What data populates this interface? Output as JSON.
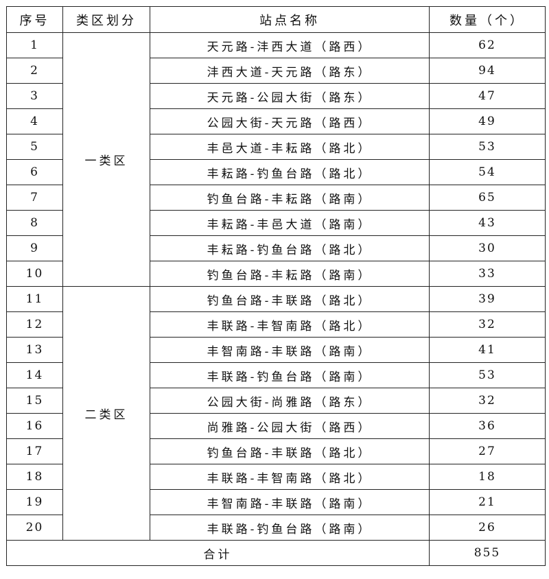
{
  "headers": [
    "序号",
    "类区划分",
    "站点名称",
    "数量（个）"
  ],
  "groups": [
    "一类区",
    "二类区"
  ],
  "rows": [
    {
      "no": "1",
      "name": "天元路-沣西大道（路西）",
      "count": "62"
    },
    {
      "no": "2",
      "name": "沣西大道-天元路（路东）",
      "count": "94"
    },
    {
      "no": "3",
      "name": "天元路-公园大街（路东）",
      "count": "47"
    },
    {
      "no": "4",
      "name": "公园大街-天元路（路西）",
      "count": "49"
    },
    {
      "no": "5",
      "name": "丰邑大道-丰耘路（路北）",
      "count": "53"
    },
    {
      "no": "6",
      "name": "丰耘路-钓鱼台路（路北）",
      "count": "54"
    },
    {
      "no": "7",
      "name": "钓鱼台路-丰耘路（路南）",
      "count": "65"
    },
    {
      "no": "8",
      "name": "丰耘路-丰邑大道（路南）",
      "count": "43"
    },
    {
      "no": "9",
      "name": "丰耘路-钓鱼台路（路北）",
      "count": "30"
    },
    {
      "no": "10",
      "name": "钓鱼台路-丰耘路（路南）",
      "count": "33"
    },
    {
      "no": "11",
      "name": "钓鱼台路-丰联路（路北）",
      "count": "39"
    },
    {
      "no": "12",
      "name": "丰联路-丰智南路（路北）",
      "count": "32"
    },
    {
      "no": "13",
      "name": "丰智南路-丰联路（路南）",
      "count": "41"
    },
    {
      "no": "14",
      "name": "丰联路-钓鱼台路（路南）",
      "count": "53"
    },
    {
      "no": "15",
      "name": "公园大街-尚雅路（路东）",
      "count": "32"
    },
    {
      "no": "16",
      "name": "尚雅路-公园大街（路西）",
      "count": "36"
    },
    {
      "no": "17",
      "name": "钓鱼台路-丰联路（路北）",
      "count": "27"
    },
    {
      "no": "18",
      "name": "丰联路-丰智南路（路北）",
      "count": "18"
    },
    {
      "no": "19",
      "name": "丰智南路-丰联路（路南）",
      "count": "21"
    },
    {
      "no": "20",
      "name": "丰联路-钓鱼台路（路南）",
      "count": "26"
    }
  ],
  "total": {
    "label": "合计",
    "value": "855"
  }
}
